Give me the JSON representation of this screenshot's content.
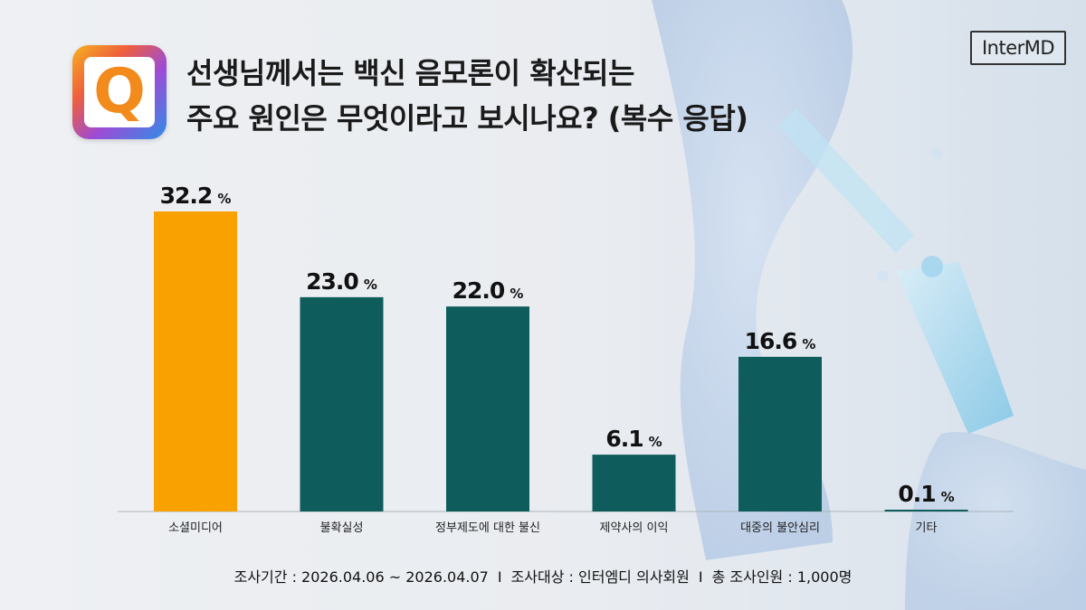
{
  "header": {
    "title_line1": "선생님께서는 백신 음모론이 확산되는",
    "title_line2": "주요 원인은 무엇이라고 보시나요? (복수 응답)",
    "logo_letter": "Q",
    "brand": "InterMD"
  },
  "chart_data": {
    "type": "bar",
    "title": "선생님께서는 백신 음모론이 확산되는 주요 원인은 무엇이라고 보시나요? (복수 응답)",
    "categories": [
      "소셜미디어",
      "불확실성",
      "정부제도에 대한 불신",
      "제약사의 이익",
      "대중의 불안심리",
      "기타"
    ],
    "values": [
      32.2,
      23.0,
      22.0,
      6.1,
      16.6,
      0.1
    ],
    "value_labels": [
      "32.2",
      "23.0",
      "22.0",
      "6.1",
      "16.6",
      "0.1"
    ],
    "unit": "%",
    "highlight_index": 0,
    "colors": {
      "highlight": "#f8a100",
      "default": "#0e5c5c",
      "axis": "#aeb4ba"
    },
    "ylim": [
      0,
      32.2
    ],
    "grid": false,
    "legend": "none"
  },
  "footer": {
    "period": "조사기간 : 2026.04.06 ~ 2026.04.07",
    "target": "조사대상 : 인터엠디 의사회원",
    "total": "총 조사인원 : 1,000명",
    "separator": "I"
  }
}
